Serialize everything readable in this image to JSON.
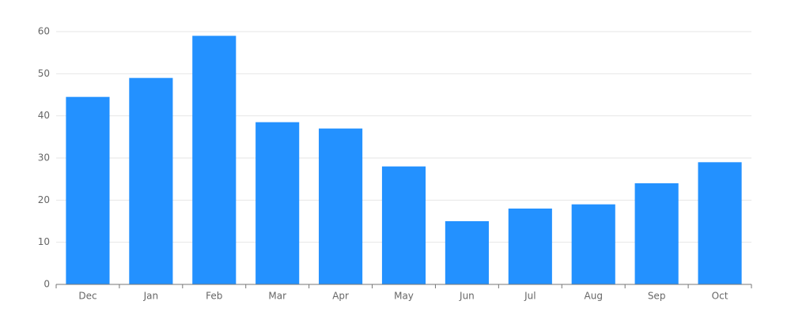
{
  "chart_data": {
    "type": "bar",
    "categories": [
      "Dec",
      "Jan",
      "Feb",
      "Mar",
      "Apr",
      "May",
      "Jun",
      "Jul",
      "Aug",
      "Sep",
      "Oct"
    ],
    "values": [
      44.5,
      49,
      59,
      38.5,
      37,
      28,
      15,
      18,
      19,
      24,
      29
    ],
    "color": "#2391ff",
    "ylim": [
      0,
      60
    ],
    "yticks": [
      0,
      10,
      20,
      30,
      40,
      50,
      60
    ],
    "grid": true
  }
}
